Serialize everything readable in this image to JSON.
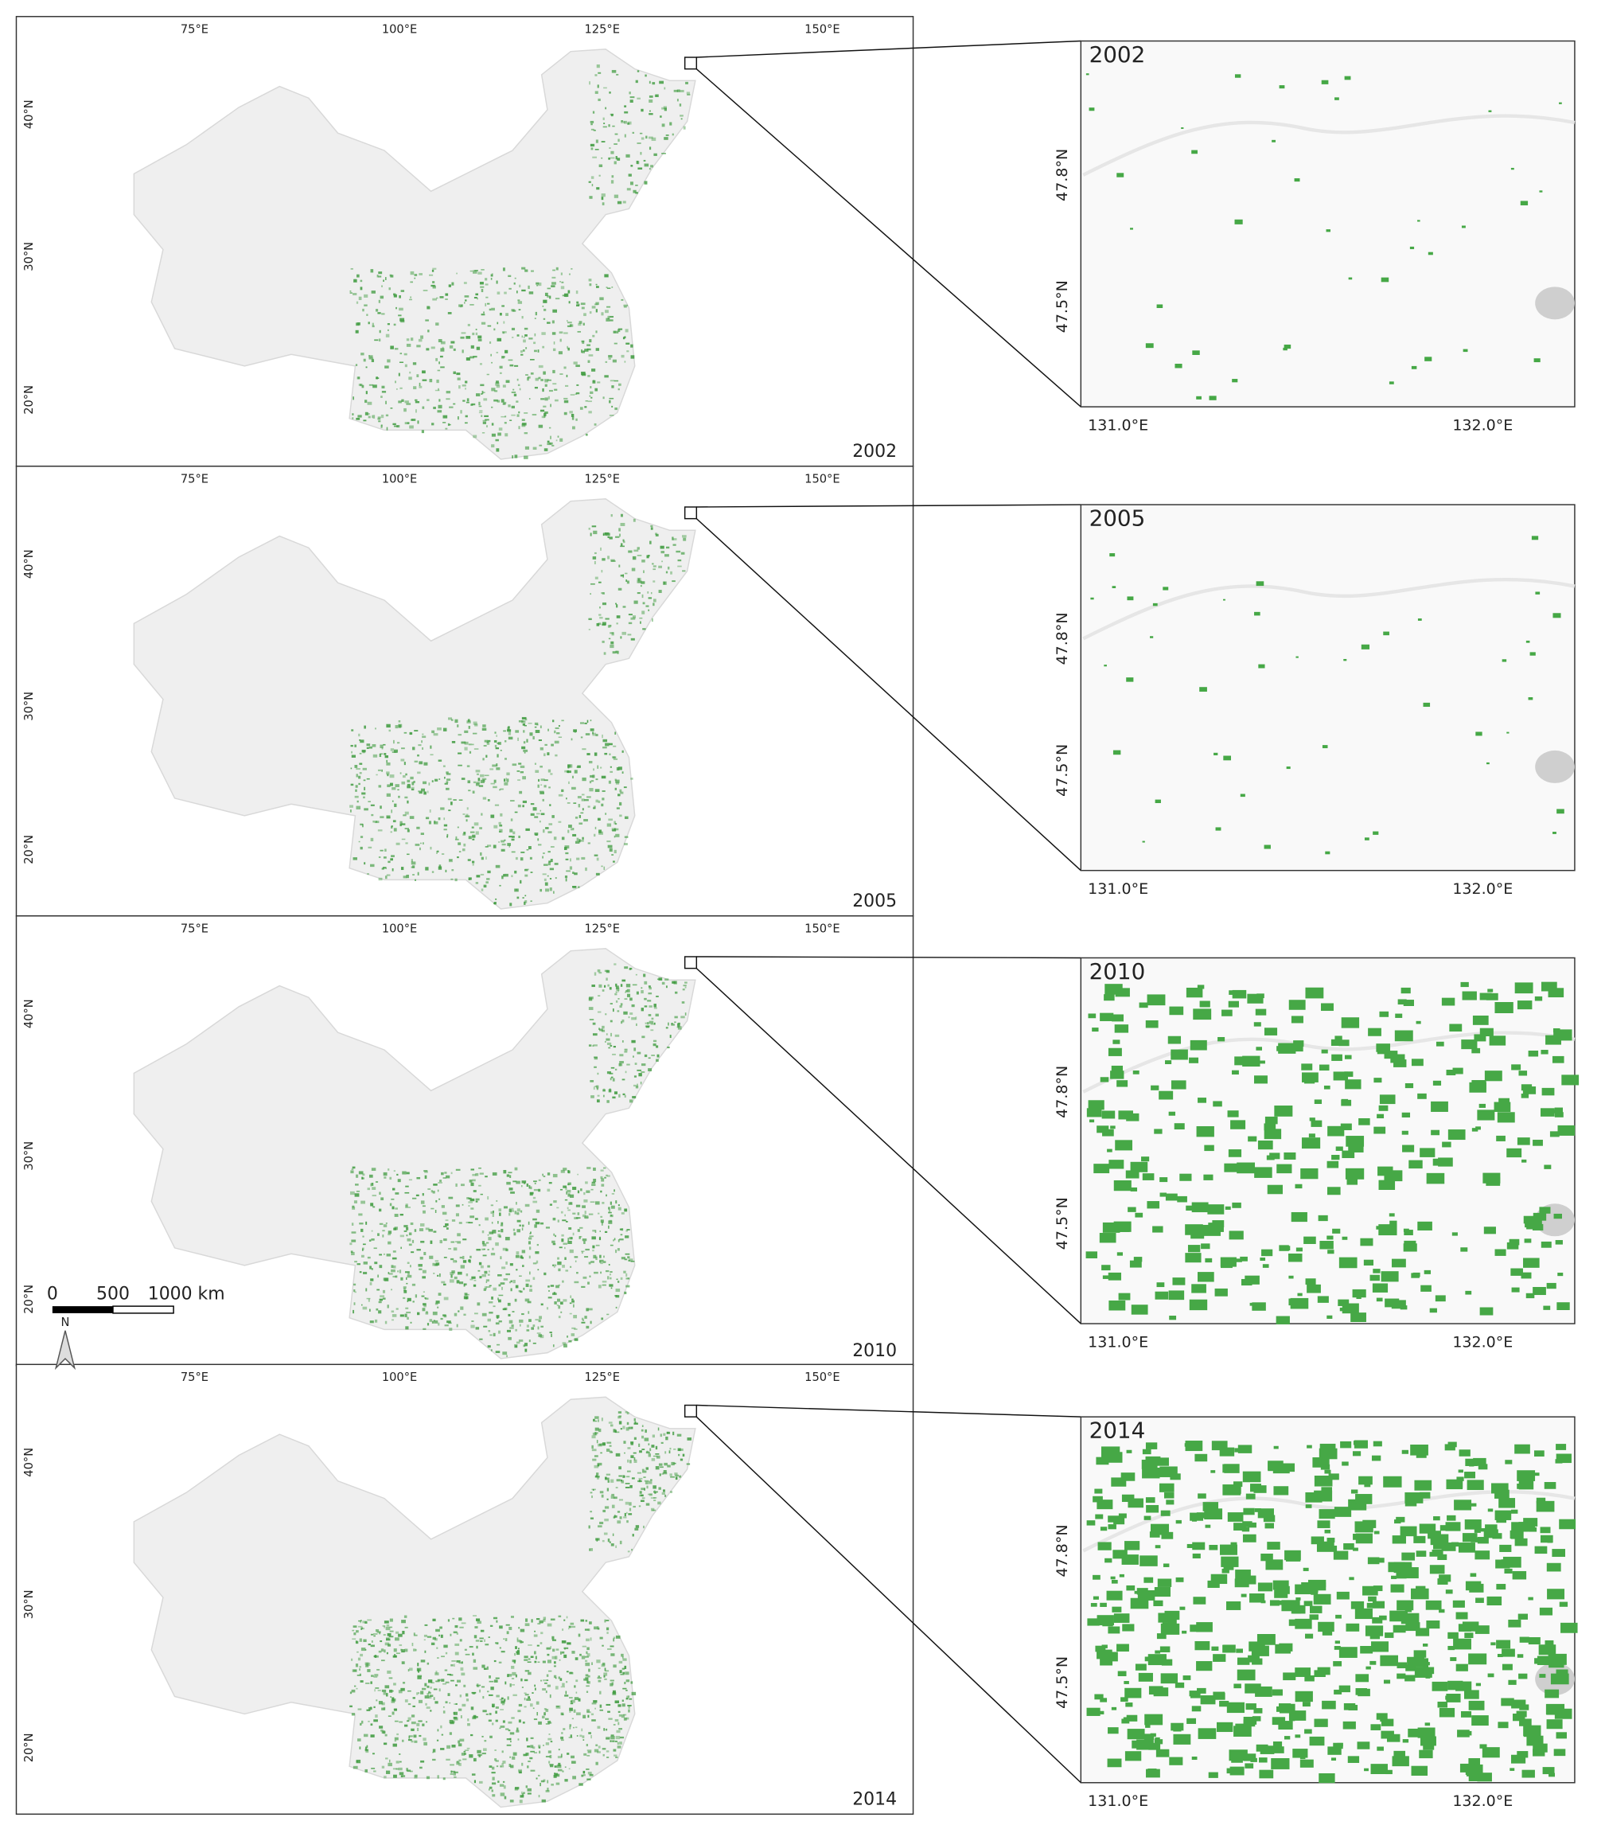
{
  "map": {
    "lon_ticks": [
      "75°E",
      "100°E",
      "125°E",
      "150°E"
    ],
    "lat_ticks": [
      "40°N",
      "30°N",
      "20°N"
    ]
  },
  "zoom": {
    "lon_ticks": [
      "131.0°E",
      "132.0°E"
    ],
    "lat_ticks": [
      "47.8°N",
      "47.5°N"
    ]
  },
  "panels": [
    {
      "year": "2002"
    },
    {
      "year": "2005"
    },
    {
      "year": "2010"
    },
    {
      "year": "2014"
    }
  ],
  "scale_bar": {
    "north": "N",
    "labels": [
      "0",
      "500",
      "1000 km"
    ]
  }
}
